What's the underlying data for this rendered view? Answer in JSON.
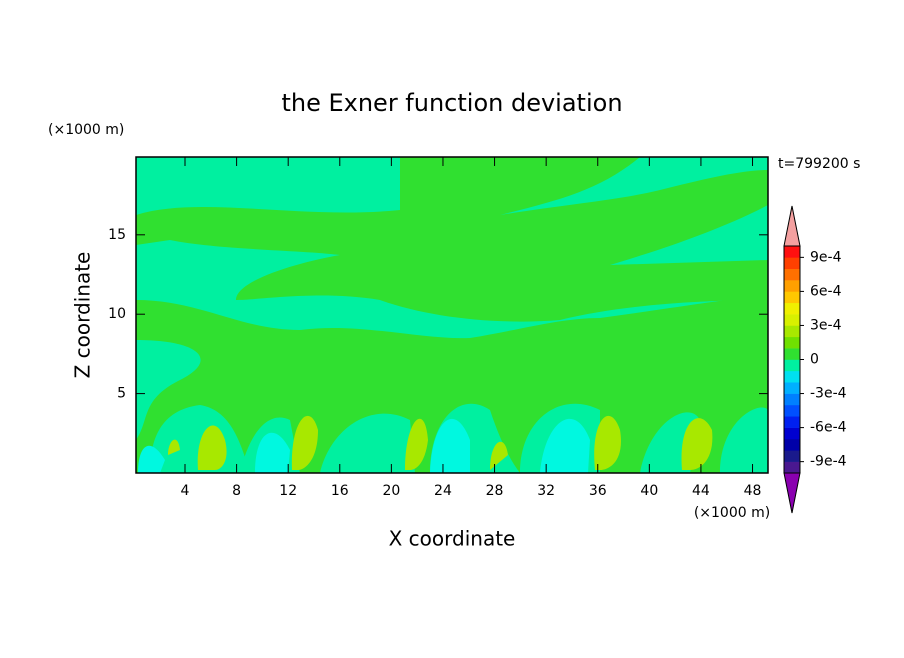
{
  "chart_data": {
    "type": "contour",
    "title": "the Exner function deviation",
    "xlabel": "X coordinate",
    "ylabel": "Z coordinate",
    "xunit": "(×1000 m)",
    "yunit": "(×1000 m)",
    "time_label": "t=799200 s",
    "xlim": [
      0.2,
      49.2
    ],
    "xticks": [
      4,
      8,
      12,
      16,
      20,
      24,
      28,
      32,
      36,
      40,
      44,
      48
    ],
    "ylim": [
      0,
      19.9
    ],
    "yticks": [
      5,
      10,
      15
    ],
    "colorbar": {
      "lim": [
        -0.001,
        0.001
      ],
      "ticks": [
        {
          "value": -0.0009,
          "label": "-9e-4"
        },
        {
          "value": -0.0006,
          "label": "-6e-4"
        },
        {
          "value": -0.0003,
          "label": "-3e-4"
        },
        0,
        {
          "value": 0.0003,
          "label": "3e-4"
        },
        {
          "value": 0.0006,
          "label": "6e-4"
        },
        {
          "value": 0.0009,
          "label": "9e-4"
        }
      ],
      "colors": [
        "#4a1890",
        "#1a1a8c",
        "#0000a8",
        "#0000d0",
        "#0020f0",
        "#0050ff",
        "#0080ff",
        "#00b0ff",
        "#00e0f0",
        "#00f0a0",
        "#30e030",
        "#70e000",
        "#a8e800",
        "#d8f000",
        "#f0f000",
        "#ffc800",
        "#ffa000",
        "#ff7000",
        "#ff4000",
        "#ff1010"
      ],
      "under_color": "#8a00b0",
      "over_color": "#f4a0a0"
    }
  }
}
